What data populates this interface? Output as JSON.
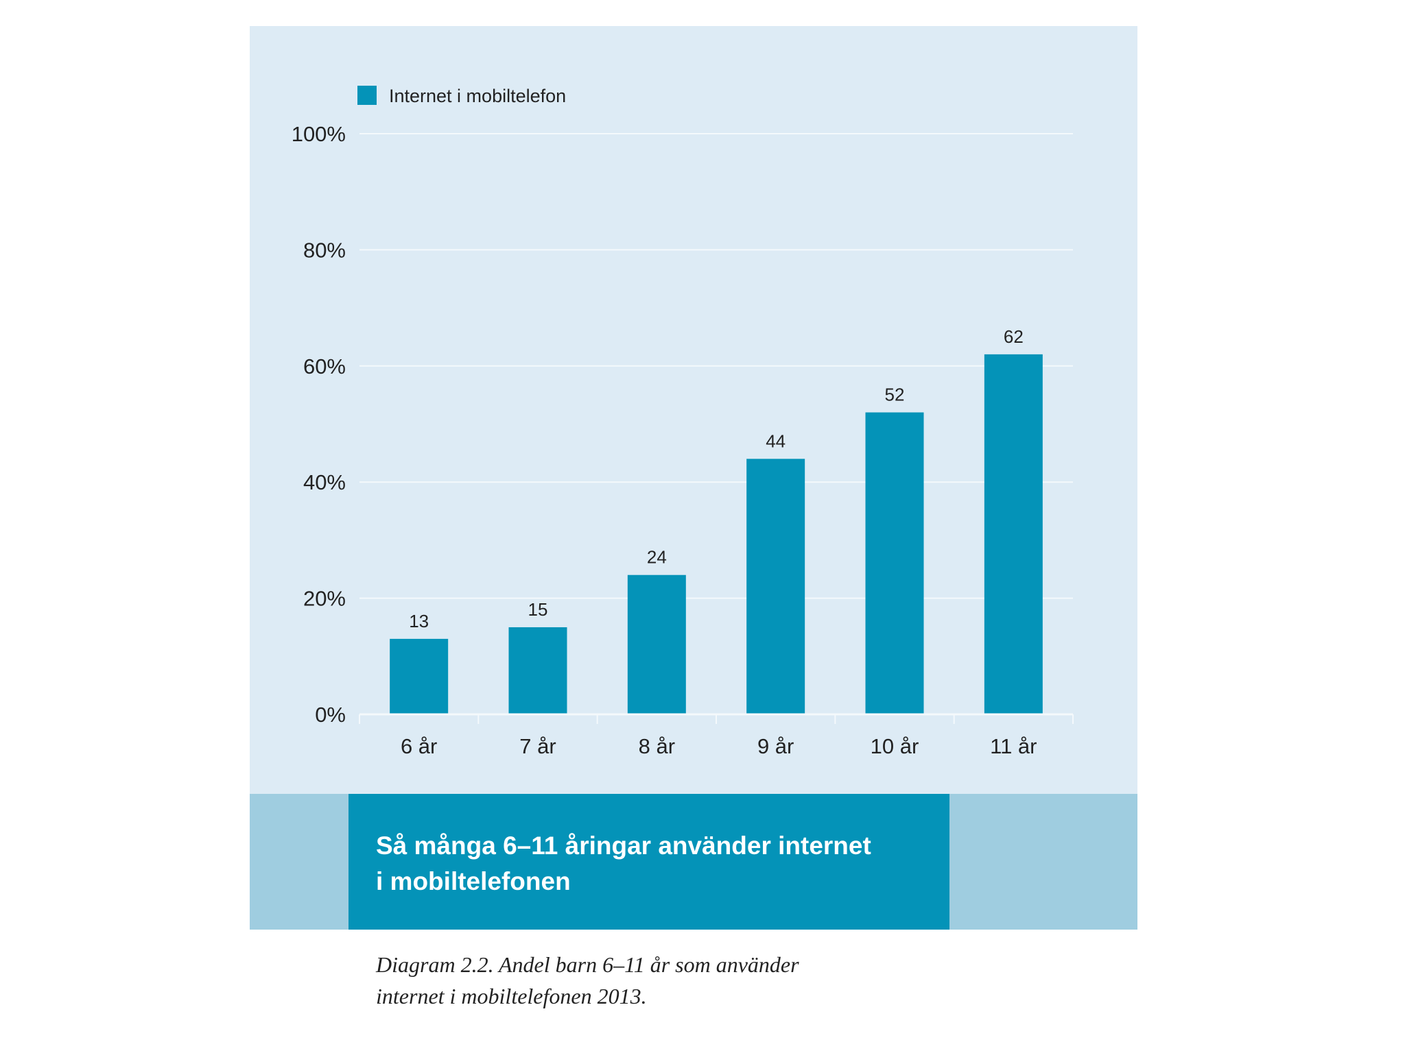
{
  "chart_data": {
    "type": "bar",
    "categories": [
      "6 år",
      "7 år",
      "8 år",
      "9 år",
      "10 år",
      "11 år"
    ],
    "series": [
      {
        "name": "Internet i mobiltelefon",
        "values": [
          13,
          15,
          24,
          44,
          52,
          62
        ],
        "color": "#0493b8"
      }
    ],
    "data_labels": [
      "13",
      "15",
      "24",
      "44",
      "52",
      "62"
    ],
    "y_ticks": [
      0,
      20,
      40,
      60,
      80,
      100
    ],
    "y_tick_labels": [
      "0%",
      "20%",
      "40%",
      "60%",
      "80%",
      "100%"
    ],
    "ylim": [
      0,
      100
    ],
    "grid": true,
    "legend_position": "top-left",
    "title": "Så många 6–11 åringar använder internet i mobiltelefonen"
  },
  "banner": {
    "title_line1": "Så många 6–11 åringar använder internet",
    "title_line2": "i mobiltelefonen"
  },
  "caption": {
    "line1": "Diagram 2.2. Andel barn 6–11 år som använder",
    "line2": "internet i mobiltelefonen 2013."
  },
  "colors": {
    "panel_background": "#ddebf5",
    "bar": "#0493b8",
    "banner": "#0493b8",
    "banner_strip": "#9fcde0"
  }
}
